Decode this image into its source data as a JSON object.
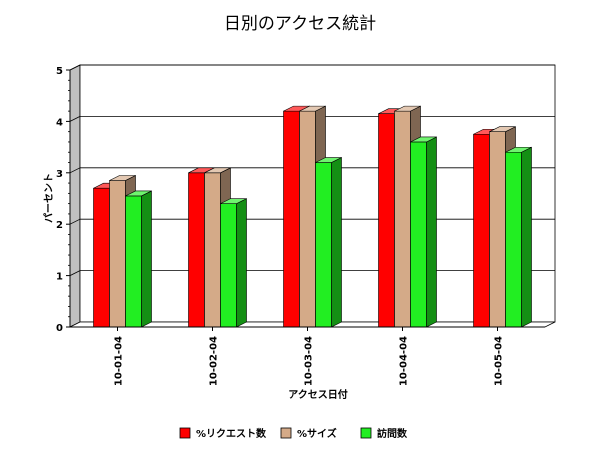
{
  "chart_data": {
    "type": "bar",
    "title": "日別のアクセス統計",
    "xlabel": "アクセス日付",
    "ylabel": "パーセント",
    "ylim": [
      0,
      5
    ],
    "yticks": [
      "0",
      "1",
      "2",
      "3",
      "4",
      "5"
    ],
    "categories": [
      "10-01-04",
      "10-02-04",
      "10-03-04",
      "10-04-04",
      "10-05-04"
    ],
    "series": [
      {
        "name": "%リクエスト数",
        "color": "#ff0000",
        "values": [
          2.7,
          3.0,
          4.2,
          4.15,
          3.75
        ]
      },
      {
        "name": "%サイズ",
        "color": "#d4aa88",
        "values": [
          2.85,
          3.0,
          4.2,
          4.2,
          3.8
        ]
      },
      {
        "name": "訪問数",
        "color": "#22ee22",
        "values": [
          2.55,
          2.4,
          3.2,
          3.6,
          3.4
        ]
      }
    ],
    "grid": true,
    "legend": "bottom"
  }
}
